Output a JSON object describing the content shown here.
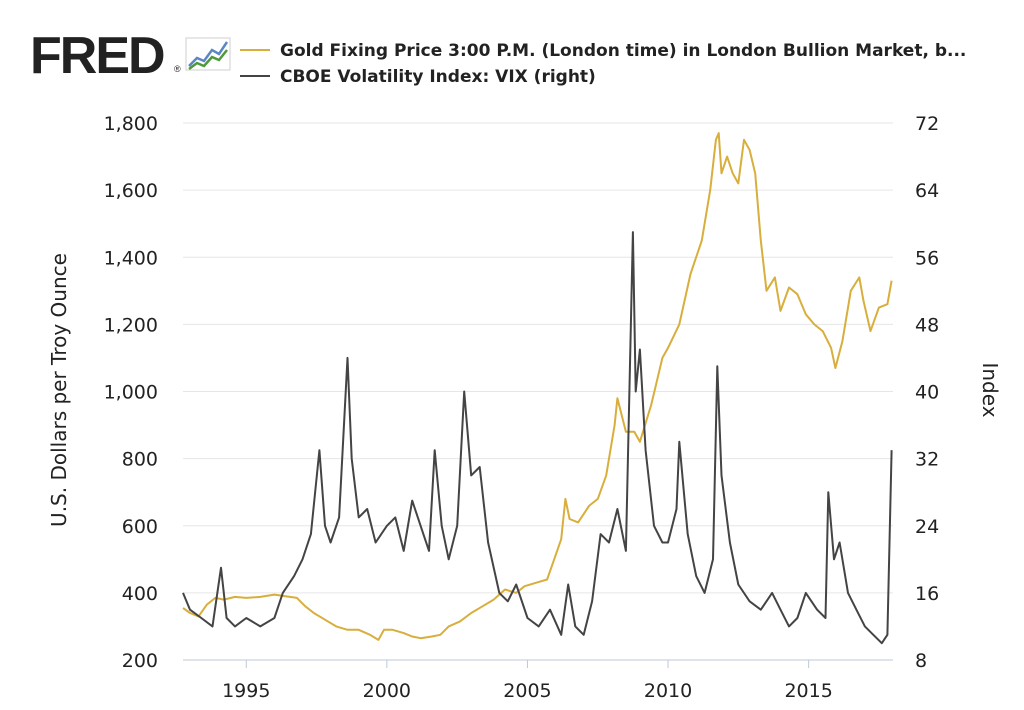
{
  "brand": {
    "name": "FRED",
    "registered": "®"
  },
  "colors": {
    "gold": "#d8ae3c",
    "vix": "#444444",
    "grid": "#e6e6e6",
    "text": "#222222",
    "logo_green": "#4e9a3a",
    "logo_blue": "#5b87c4"
  },
  "chart_data": {
    "type": "line",
    "title": "",
    "xlabel": "",
    "ylabel": "U.S. Dollars per Troy Ounce",
    "ylabel_right": "Index",
    "xlim": [
      1992.75,
      2018.0
    ],
    "ylim": [
      200,
      1800
    ],
    "ylim_right": [
      8,
      72
    ],
    "x_ticks": [
      1995,
      2000,
      2005,
      2010,
      2015
    ],
    "x_tick_labels": [
      "1995",
      "2000",
      "2005",
      "2010",
      "2015"
    ],
    "y_ticks": [
      200,
      400,
      600,
      800,
      1000,
      1200,
      1400,
      1600,
      1800
    ],
    "y_tick_labels": [
      "200",
      "400",
      "600",
      "800",
      "1,000",
      "1,200",
      "1,400",
      "1,600",
      "1,800"
    ],
    "y_ticks_right": [
      8,
      16,
      24,
      32,
      40,
      48,
      56,
      64,
      72
    ],
    "y_tick_labels_right": [
      "8",
      "16",
      "24",
      "32",
      "40",
      "48",
      "56",
      "64",
      "72"
    ],
    "grid": true,
    "legend_position": "top",
    "series": [
      {
        "name": "Gold Fixing Price 3:00 P.M. (London time) in London Bullion Market, b...",
        "axis": "left",
        "color": "#d8ae3c",
        "x": [
          1992.75,
          1993.0,
          1993.3,
          1993.6,
          1993.9,
          1994.2,
          1994.6,
          1995.0,
          1995.5,
          1996.0,
          1996.4,
          1996.8,
          1997.1,
          1997.4,
          1997.8,
          1998.2,
          1998.6,
          1999.0,
          1999.4,
          1999.7,
          1999.9,
          2000.2,
          2000.6,
          2000.9,
          2001.2,
          2001.6,
          2001.9,
          2002.2,
          2002.6,
          2003.0,
          2003.4,
          2003.8,
          2004.2,
          2004.6,
          2004.9,
          2005.3,
          2005.7,
          2005.95,
          2006.2,
          2006.35,
          2006.5,
          2006.8,
          2007.2,
          2007.5,
          2007.8,
          2008.1,
          2008.2,
          2008.5,
          2008.8,
          2009.0,
          2009.4,
          2009.8,
          2010.0,
          2010.4,
          2010.8,
          2011.2,
          2011.5,
          2011.7,
          2011.8,
          2011.9,
          2012.1,
          2012.3,
          2012.5,
          2012.7,
          2012.9,
          2013.1,
          2013.3,
          2013.5,
          2013.8,
          2014.0,
          2014.3,
          2014.6,
          2014.9,
          2015.2,
          2015.5,
          2015.8,
          2015.95,
          2016.2,
          2016.5,
          2016.8,
          2016.95,
          2017.2,
          2017.5,
          2017.8,
          2017.95
        ],
        "values": [
          355,
          340,
          330,
          365,
          385,
          380,
          388,
          385,
          388,
          395,
          390,
          385,
          360,
          340,
          320,
          300,
          290,
          290,
          275,
          260,
          290,
          290,
          280,
          270,
          265,
          270,
          275,
          300,
          315,
          340,
          360,
          380,
          410,
          400,
          420,
          430,
          440,
          500,
          560,
          680,
          620,
          610,
          660,
          680,
          750,
          900,
          980,
          880,
          880,
          850,
          960,
          1100,
          1130,
          1200,
          1350,
          1450,
          1600,
          1750,
          1770,
          1650,
          1700,
          1650,
          1620,
          1750,
          1720,
          1650,
          1450,
          1300,
          1340,
          1240,
          1310,
          1290,
          1230,
          1200,
          1180,
          1130,
          1070,
          1150,
          1300,
          1340,
          1270,
          1180,
          1250,
          1260,
          1330
        ]
      },
      {
        "name": "CBOE Volatility Index: VIX (right)",
        "axis": "right",
        "color": "#444444",
        "x": [
          1992.75,
          1993.0,
          1993.4,
          1993.8,
          1994.1,
          1994.3,
          1994.6,
          1995.0,
          1995.5,
          1996.0,
          1996.3,
          1996.7,
          1997.0,
          1997.3,
          1997.6,
          1997.8,
          1998.0,
          1998.3,
          1998.6,
          1998.75,
          1999.0,
          1999.3,
          1999.6,
          2000.0,
          2000.3,
          2000.6,
          2000.9,
          2001.2,
          2001.5,
          2001.7,
          2001.95,
          2002.2,
          2002.5,
          2002.75,
          2003.0,
          2003.3,
          2003.6,
          2004.0,
          2004.3,
          2004.6,
          2005.0,
          2005.4,
          2005.8,
          2006.2,
          2006.45,
          2006.7,
          2007.0,
          2007.3,
          2007.6,
          2007.9,
          2008.2,
          2008.5,
          2008.75,
          2008.85,
          2009.0,
          2009.2,
          2009.5,
          2009.8,
          2010.0,
          2010.3,
          2010.4,
          2010.7,
          2011.0,
          2011.3,
          2011.6,
          2011.75,
          2011.9,
          2012.2,
          2012.5,
          2012.9,
          2013.3,
          2013.7,
          2014.0,
          2014.3,
          2014.6,
          2014.9,
          2015.3,
          2015.6,
          2015.7,
          2015.9,
          2016.1,
          2016.4,
          2016.7,
          2017.0,
          2017.3,
          2017.6,
          2017.8,
          2017.95
        ],
        "values": [
          16,
          14,
          13,
          12,
          19,
          13,
          12,
          13,
          12,
          13,
          16,
          18,
          20,
          23,
          33,
          24,
          22,
          25,
          44,
          32,
          25,
          26,
          22,
          24,
          25,
          21,
          27,
          24,
          21,
          33,
          24,
          20,
          24,
          40,
          30,
          31,
          22,
          16,
          15,
          17,
          13,
          12,
          14,
          11,
          17,
          12,
          11,
          15,
          23,
          22,
          26,
          21,
          59,
          40,
          45,
          33,
          24,
          22,
          22,
          26,
          34,
          23,
          18,
          16,
          20,
          43,
          30,
          22,
          17,
          15,
          14,
          16,
          14,
          12,
          13,
          16,
          14,
          13,
          28,
          20,
          22,
          16,
          14,
          12,
          11,
          10,
          11,
          33
        ]
      }
    ]
  }
}
